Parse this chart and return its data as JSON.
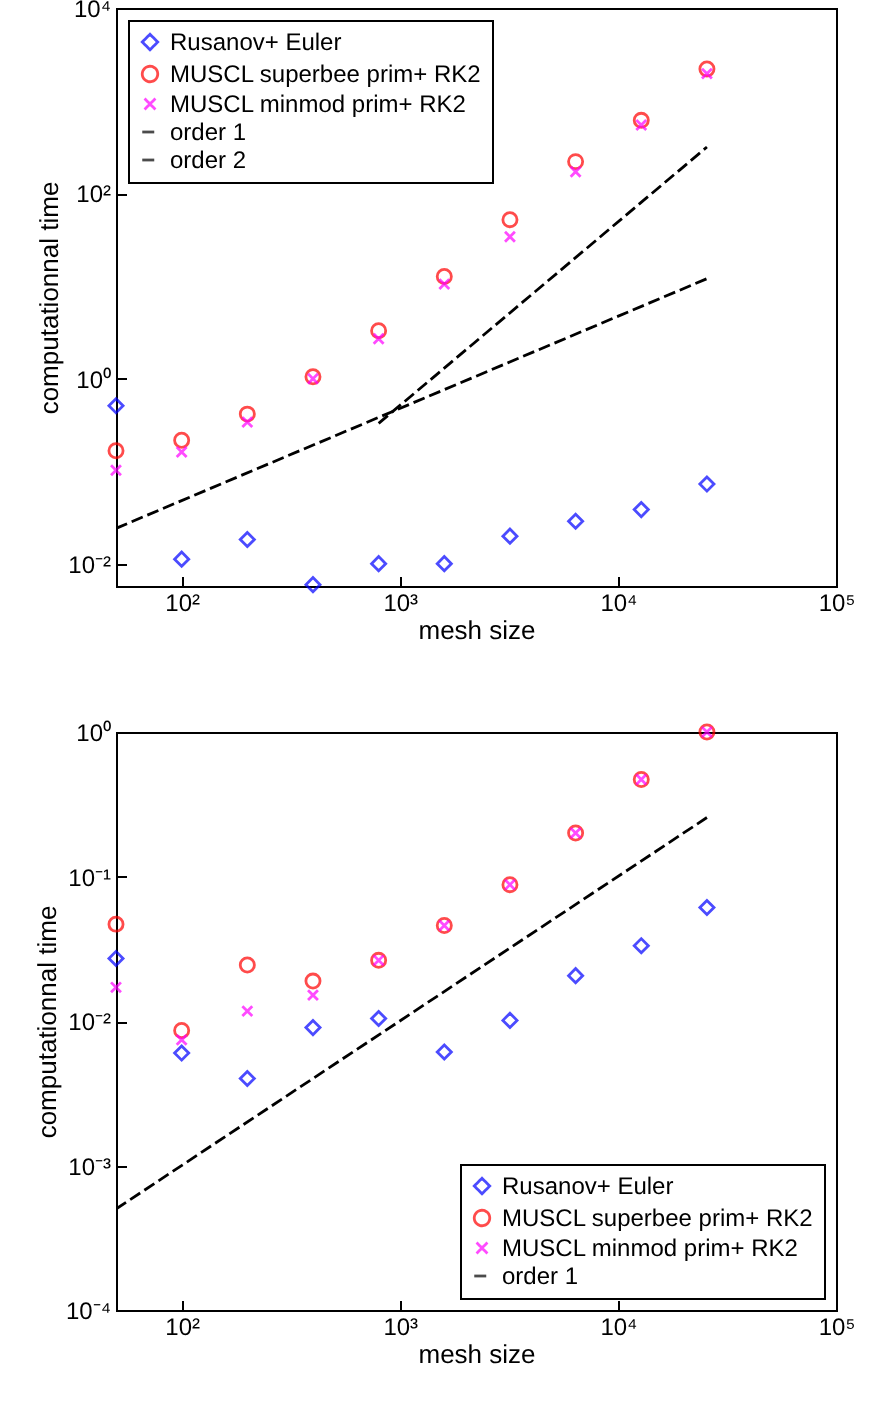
{
  "chart_data": [
    {
      "type": "scatter",
      "x": [
        50,
        100,
        200,
        400,
        800,
        1600,
        3200,
        6400,
        12800,
        25600
      ],
      "xlabel": "mesh size",
      "ylabel": "computationnal time",
      "log": "xy",
      "grid": false,
      "legend": "top left",
      "xlim": [
        50,
        100000
      ],
      "ylim": [
        0.0058,
        10000
      ],
      "xticks": [
        {
          "value": 100,
          "label": "10²"
        },
        {
          "value": 1000,
          "label": "10³"
        },
        {
          "value": 10000,
          "label": "10⁴"
        },
        {
          "value": 100000,
          "label": "10⁵"
        }
      ],
      "yticks": [
        {
          "value": 0.01,
          "label": "10⁻²"
        },
        {
          "value": 1,
          "label": "10⁰"
        },
        {
          "value": 100,
          "label": "10²"
        },
        {
          "value": 10000,
          "label": "10⁴"
        }
      ],
      "series": [
        {
          "name": "Rusanov+ Euler",
          "type": "scatter",
          "marker": "diamond",
          "color": "#0000ff",
          "values": [
            0.51,
            0.0113,
            0.0184,
            0.006,
            0.0101,
            0.0101,
            0.02,
            0.029,
            0.0387,
            0.073
          ]
        },
        {
          "name": "MUSCL superbee prim+ RK2",
          "type": "scatter",
          "marker": "circle",
          "color": "#ff0000",
          "values": [
            0.167,
            0.217,
            0.415,
            1.05,
            3.3,
            12.7,
            52,
            220,
            614,
            2200
          ]
        },
        {
          "name": "MUSCL minmod prim+ RK2",
          "type": "scatter",
          "marker": "cross",
          "color": "#ff00ff",
          "values": [
            0.103,
            0.162,
            0.34,
            1.0,
            2.7,
            10.5,
            34,
            171,
            547,
            1960
          ]
        },
        {
          "name": "order 1",
          "type": "line",
          "marker": "none",
          "line_style": "dashed",
          "color": "#000000",
          "x": [
            50,
            25600
          ],
          "values": [
            0.0243,
            12
          ]
        },
        {
          "name": "order 2",
          "type": "line",
          "marker": "none",
          "line_style": "dashed",
          "color": "#000000",
          "x": [
            800,
            25600
          ],
          "values": [
            0.33,
            316
          ]
        }
      ]
    },
    {
      "type": "scatter",
      "x": [
        50,
        100,
        200,
        400,
        800,
        1600,
        3200,
        6400,
        12800,
        25600
      ],
      "xlabel": "mesh size",
      "ylabel": "computationnal time",
      "log": "xy",
      "grid": false,
      "legend": "bottom right",
      "xlim": [
        50,
        100000
      ],
      "ylim": [
        0.0001,
        1
      ],
      "xticks": [
        {
          "value": 100,
          "label": "10²"
        },
        {
          "value": 1000,
          "label": "10³"
        },
        {
          "value": 10000,
          "label": "10⁴"
        },
        {
          "value": 100000,
          "label": "10⁵"
        }
      ],
      "yticks": [
        {
          "value": 0.0001,
          "label": "10⁻⁴"
        },
        {
          "value": 0.001,
          "label": "10⁻³"
        },
        {
          "value": 0.01,
          "label": "10⁻²"
        },
        {
          "value": 0.1,
          "label": "10⁻¹"
        },
        {
          "value": 1,
          "label": "10⁰"
        }
      ],
      "series": [
        {
          "name": "Rusanov+ Euler",
          "type": "scatter",
          "marker": "diamond",
          "color": "#0000ff",
          "values": [
            0.0271,
            0.006,
            0.004,
            0.009,
            0.0104,
            0.0061,
            0.0101,
            0.0206,
            0.0332,
            0.061
          ]
        },
        {
          "name": "MUSCL superbee prim+ RK2",
          "type": "scatter",
          "marker": "circle",
          "color": "#ff0000",
          "values": [
            0.0468,
            0.0086,
            0.0244,
            0.0189,
            0.0263,
            0.0458,
            0.0878,
            0.2,
            0.469,
            1.0
          ]
        },
        {
          "name": "MUSCL minmod prim+ RK2",
          "type": "scatter",
          "marker": "cross",
          "color": "#ff00ff",
          "values": [
            0.0171,
            0.0074,
            0.0117,
            0.0151,
            0.0263,
            0.0458,
            0.0878,
            0.2,
            0.469,
            1.0
          ]
        },
        {
          "name": "order 1",
          "type": "line",
          "marker": "none",
          "line_style": "dashed",
          "color": "#000000",
          "x": [
            50,
            25600
          ],
          "values": [
            0.0005,
            0.256
          ]
        }
      ]
    }
  ]
}
